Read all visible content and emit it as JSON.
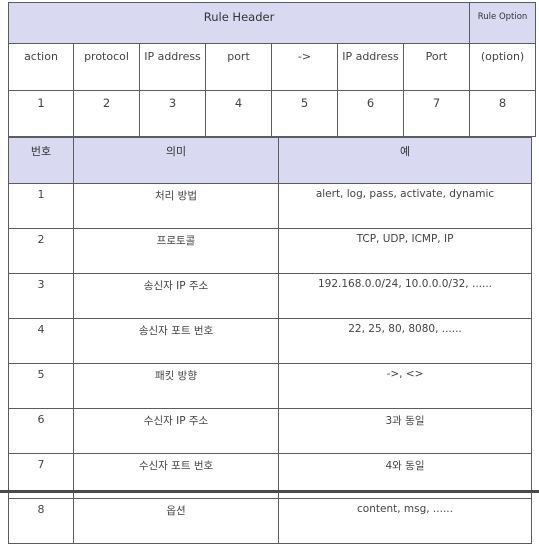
{
  "table1": {
    "header": {
      "main": "Rule Header",
      "option": "Rule Option"
    },
    "fields": [
      "action",
      "protocol",
      "IP address",
      "port",
      "->",
      "IP address",
      "Port",
      "(option)"
    ],
    "numbers": [
      "1",
      "2",
      "3",
      "4",
      "5",
      "6",
      "7",
      "8"
    ]
  },
  "table2": {
    "columns": [
      "번호",
      "의미",
      "예"
    ],
    "rows": [
      {
        "num": "1",
        "meaning": "처리 방법",
        "example": "alert, log, pass, activate, dynamic"
      },
      {
        "num": "2",
        "meaning": "프로토콜",
        "example": "TCP, UDP, ICMP, IP"
      },
      {
        "num": "3",
        "meaning": "송신자 IP 주소",
        "example": "192.168.0.0/24, 10.0.0.0/32, ......"
      },
      {
        "num": "4",
        "meaning": "송신자 포트 번호",
        "example": "22, 25, 80, 8080, ......"
      },
      {
        "num": "5",
        "meaning": "패킷 방향",
        "example": "->, <>"
      },
      {
        "num": "6",
        "meaning": "수신자 IP 주소",
        "example": "3과 동일"
      },
      {
        "num": "7",
        "meaning": "수신자 포트 번호",
        "example": "4와 동일"
      },
      {
        "num": "8",
        "meaning": "옵션",
        "example": "content, msg, ......"
      }
    ]
  },
  "colors": {
    "header_bg": "#d9d9f2",
    "border": "#5c5c5c"
  }
}
